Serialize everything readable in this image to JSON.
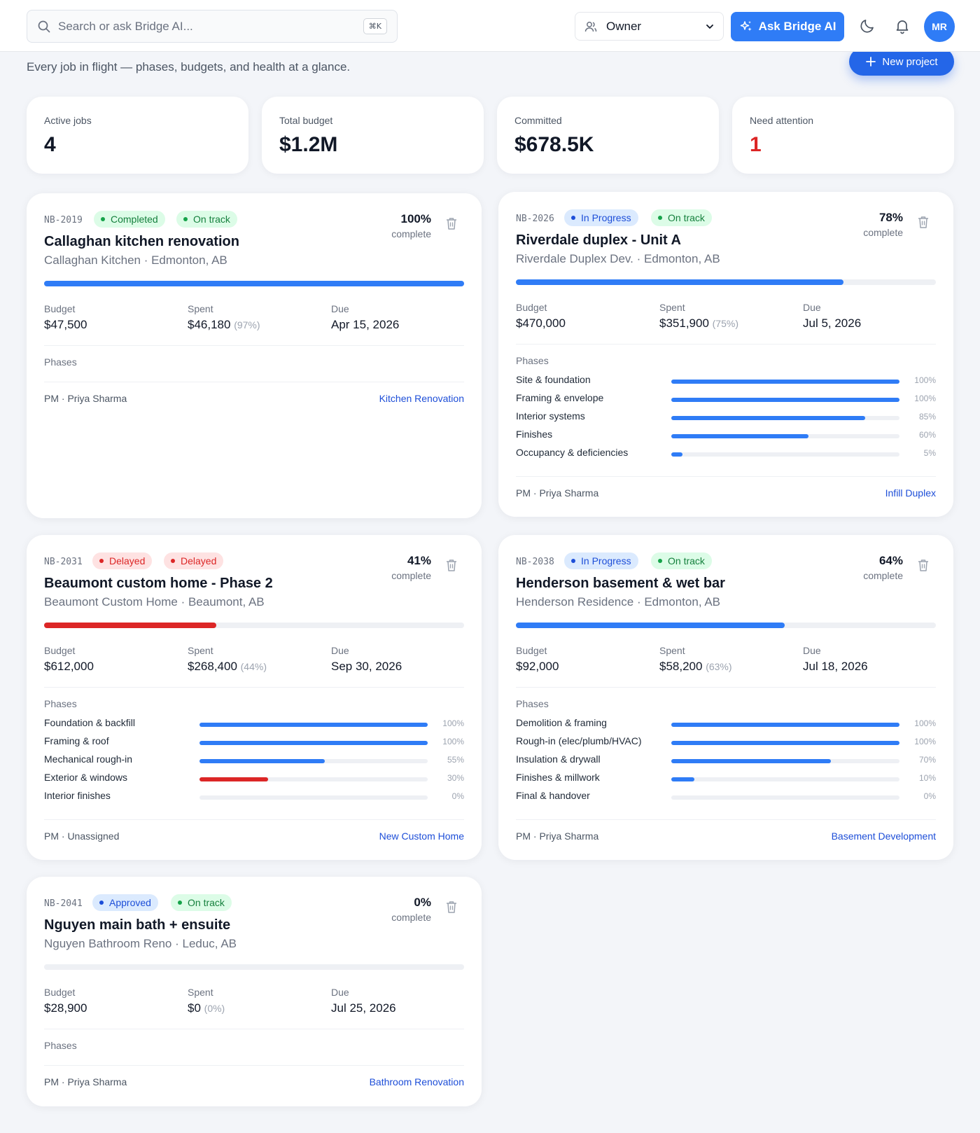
{
  "header": {
    "search_placeholder": "Search or ask Bridge AI...",
    "search_shortcut": "⌘K",
    "role": "Owner",
    "ask_label": "Ask Bridge AI",
    "avatar_initials": "MR"
  },
  "page": {
    "subtitle": "Every job in flight — phases, budgets, and health at a glance.",
    "new_project_label": "New project"
  },
  "stats": [
    {
      "label": "Active jobs",
      "value": "4"
    },
    {
      "label": "Total budget",
      "value": "$1.2M"
    },
    {
      "label": "Committed",
      "value": "$678.5K"
    },
    {
      "label": "Need attention",
      "value": "1"
    }
  ],
  "labels": {
    "complete": "complete",
    "budget": "Budget",
    "spent": "Spent",
    "due": "Due",
    "phases": "Phases"
  },
  "projects": [
    {
      "code": "NB-2019",
      "badges": [
        "Completed",
        "On track"
      ],
      "percent": "100%",
      "progress": 1.0,
      "name": "Callaghan kitchen renovation",
      "location": "Callaghan Kitchen · Edmonton, AB",
      "budget": "$47,500",
      "spent": "$46,180",
      "spent_pct": "(97%)",
      "due": "Apr 15, 2026",
      "phases": [],
      "pm": "PM · Priya Sharma",
      "type": "Kitchen Renovation"
    },
    {
      "code": "NB-2026",
      "badges": [
        "In Progress",
        "On track"
      ],
      "percent": "78%",
      "progress": 0.78,
      "name": "Riverdale duplex - Unit A",
      "location": "Riverdale Duplex Dev. · Edmonton, AB",
      "budget": "$470,000",
      "spent": "$351,900",
      "spent_pct": "(75%)",
      "due": "Jul 5, 2026",
      "phases": [
        {
          "name": "Site & foundation",
          "pct": "100%",
          "value": 1.0
        },
        {
          "name": "Framing & envelope",
          "pct": "100%",
          "value": 1.0
        },
        {
          "name": "Interior systems",
          "pct": "85%",
          "value": 0.85
        },
        {
          "name": "Finishes",
          "pct": "60%",
          "value": 0.6
        },
        {
          "name": "Occupancy & deficiencies",
          "pct": "5%",
          "value": 0.05
        }
      ],
      "pm": "PM · Priya Sharma",
      "type": "Infill Duplex"
    },
    {
      "code": "NB-2031",
      "badges": [
        "Delayed",
        "Delayed"
      ],
      "percent": "41%",
      "progress": 0.41,
      "name": "Beaumont custom home - Phase 2",
      "location": "Beaumont Custom Home · Beaumont, AB",
      "budget": "$612,000",
      "spent": "$268,400",
      "spent_pct": "(44%)",
      "due": "Sep 30, 2026",
      "phases": [
        {
          "name": "Foundation & backfill",
          "pct": "100%",
          "value": 1.0
        },
        {
          "name": "Framing & roof",
          "pct": "100%",
          "value": 1.0
        },
        {
          "name": "Mechanical rough-in",
          "pct": "55%",
          "value": 0.55
        },
        {
          "name": "Exterior & windows",
          "pct": "30%",
          "value": 0.3
        },
        {
          "name": "Interior finishes",
          "pct": "0%",
          "value": 0
        }
      ],
      "pm": "PM · Unassigned",
      "type": "New Custom Home"
    },
    {
      "code": "NB-2038",
      "badges": [
        "In Progress",
        "On track"
      ],
      "percent": "64%",
      "progress": 0.64,
      "name": "Henderson basement & wet bar",
      "location": "Henderson Residence · Edmonton, AB",
      "budget": "$92,000",
      "spent": "$58,200",
      "spent_pct": "(63%)",
      "due": "Jul 18, 2026",
      "phases": [
        {
          "name": "Demolition & framing",
          "pct": "100%",
          "value": 1.0
        },
        {
          "name": "Rough-in (elec/plumb/HVAC)",
          "pct": "100%",
          "value": 1.0
        },
        {
          "name": "Insulation & drywall",
          "pct": "70%",
          "value": 0.7
        },
        {
          "name": "Finishes & millwork",
          "pct": "10%",
          "value": 0.1
        },
        {
          "name": "Final & handover",
          "pct": "0%",
          "value": 0
        }
      ],
      "pm": "PM · Priya Sharma",
      "type": "Basement Development"
    },
    {
      "code": "NB-2041",
      "badges": [
        "Approved",
        "On track"
      ],
      "percent": "0%",
      "progress": 0,
      "name": "Nguyen main bath + ensuite",
      "location": "Nguyen Bathroom Reno · Leduc, AB",
      "budget": "$28,900",
      "spent": "$0",
      "spent_pct": "(0%)",
      "due": "Jul 25, 2026",
      "phases": [],
      "pm": "PM · Priya Sharma",
      "type": "Bathroom Renovation"
    }
  ],
  "colors": {
    "accent": "#2f7cf6",
    "danger": "#dc2626",
    "success": "#16a34a"
  }
}
